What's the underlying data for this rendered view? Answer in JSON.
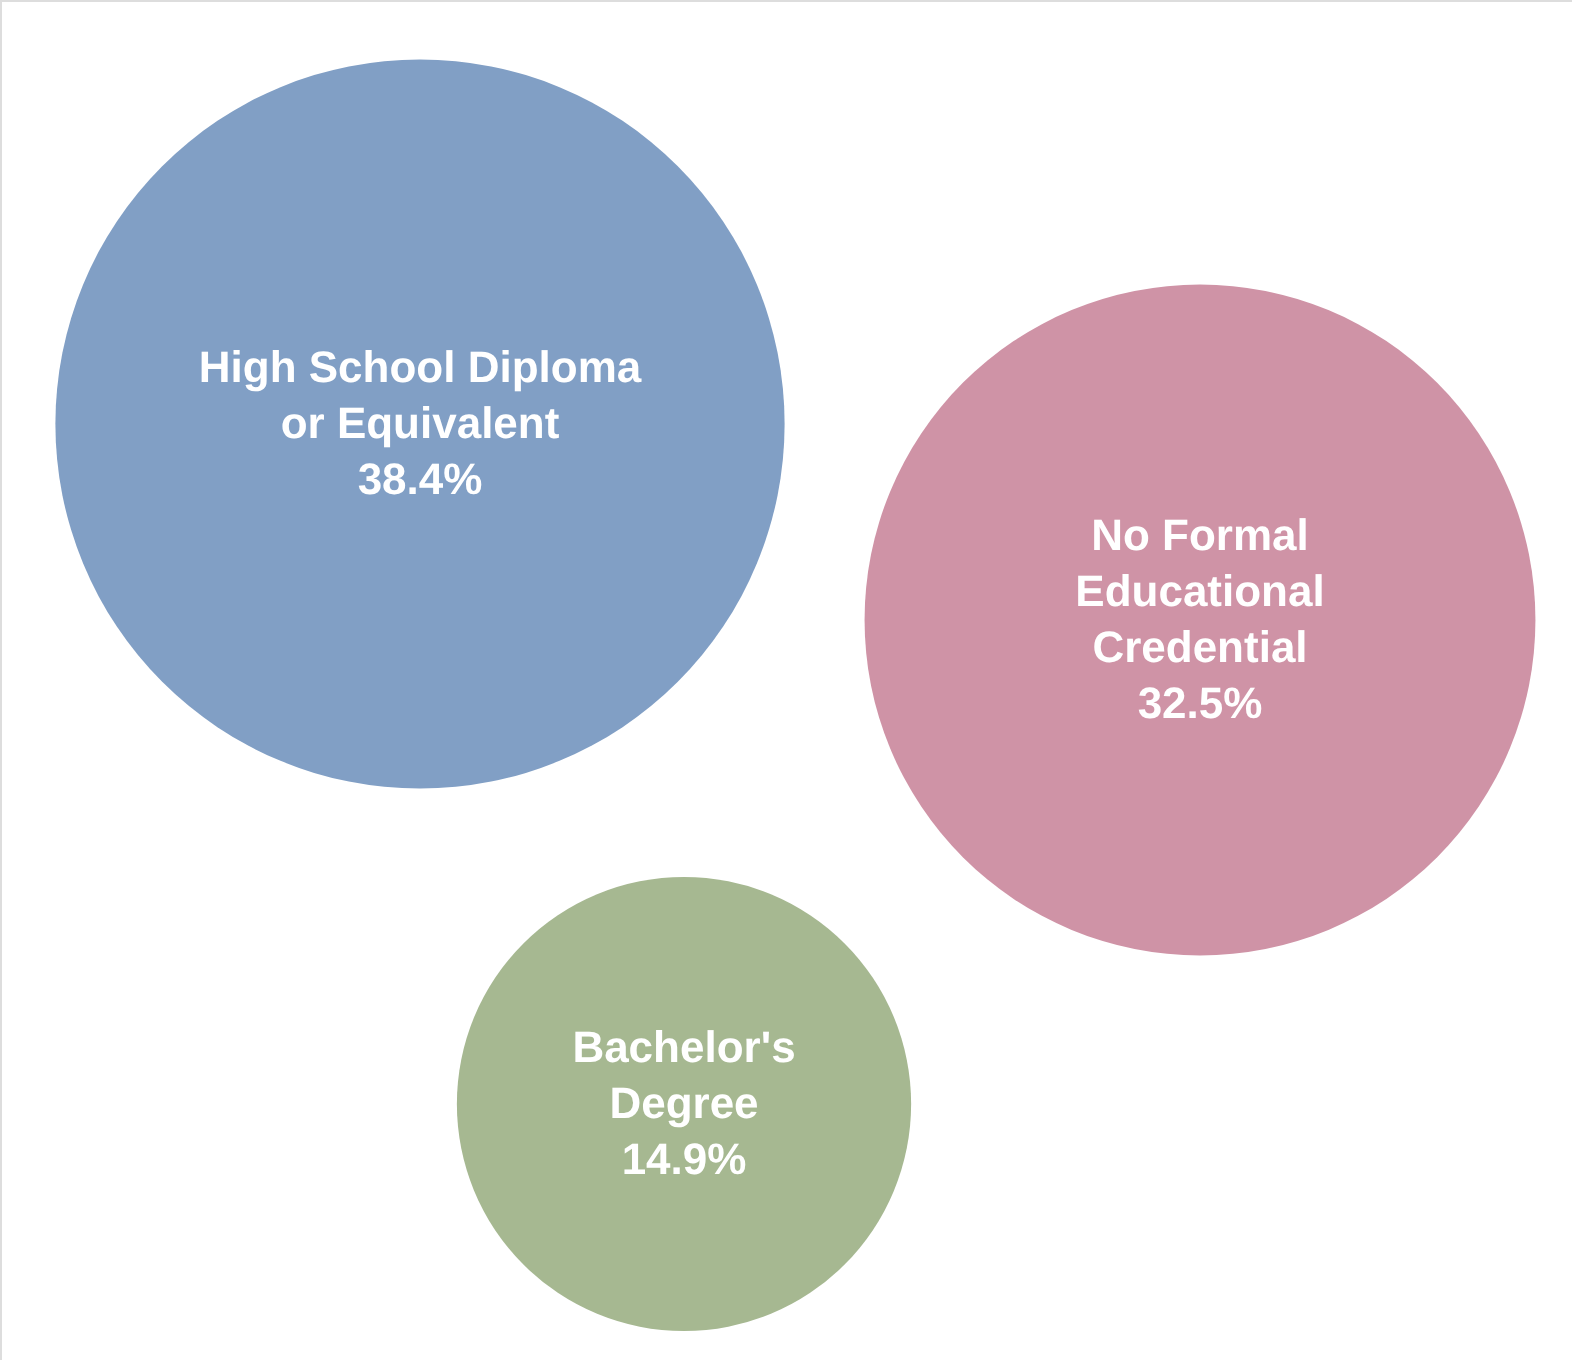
{
  "chart_data": {
    "type": "other",
    "categories": [
      "High School Diploma or Equivalent",
      "No Formal Educational Credential",
      "Bachelor's Degree"
    ],
    "values": [
      38.4,
      32.5,
      14.9
    ],
    "value_labels": [
      "38.4%",
      "32.5%",
      "14.9%"
    ],
    "colors": [
      "#819fc5",
      "#cf93a6",
      "#a6b891"
    ]
  }
}
